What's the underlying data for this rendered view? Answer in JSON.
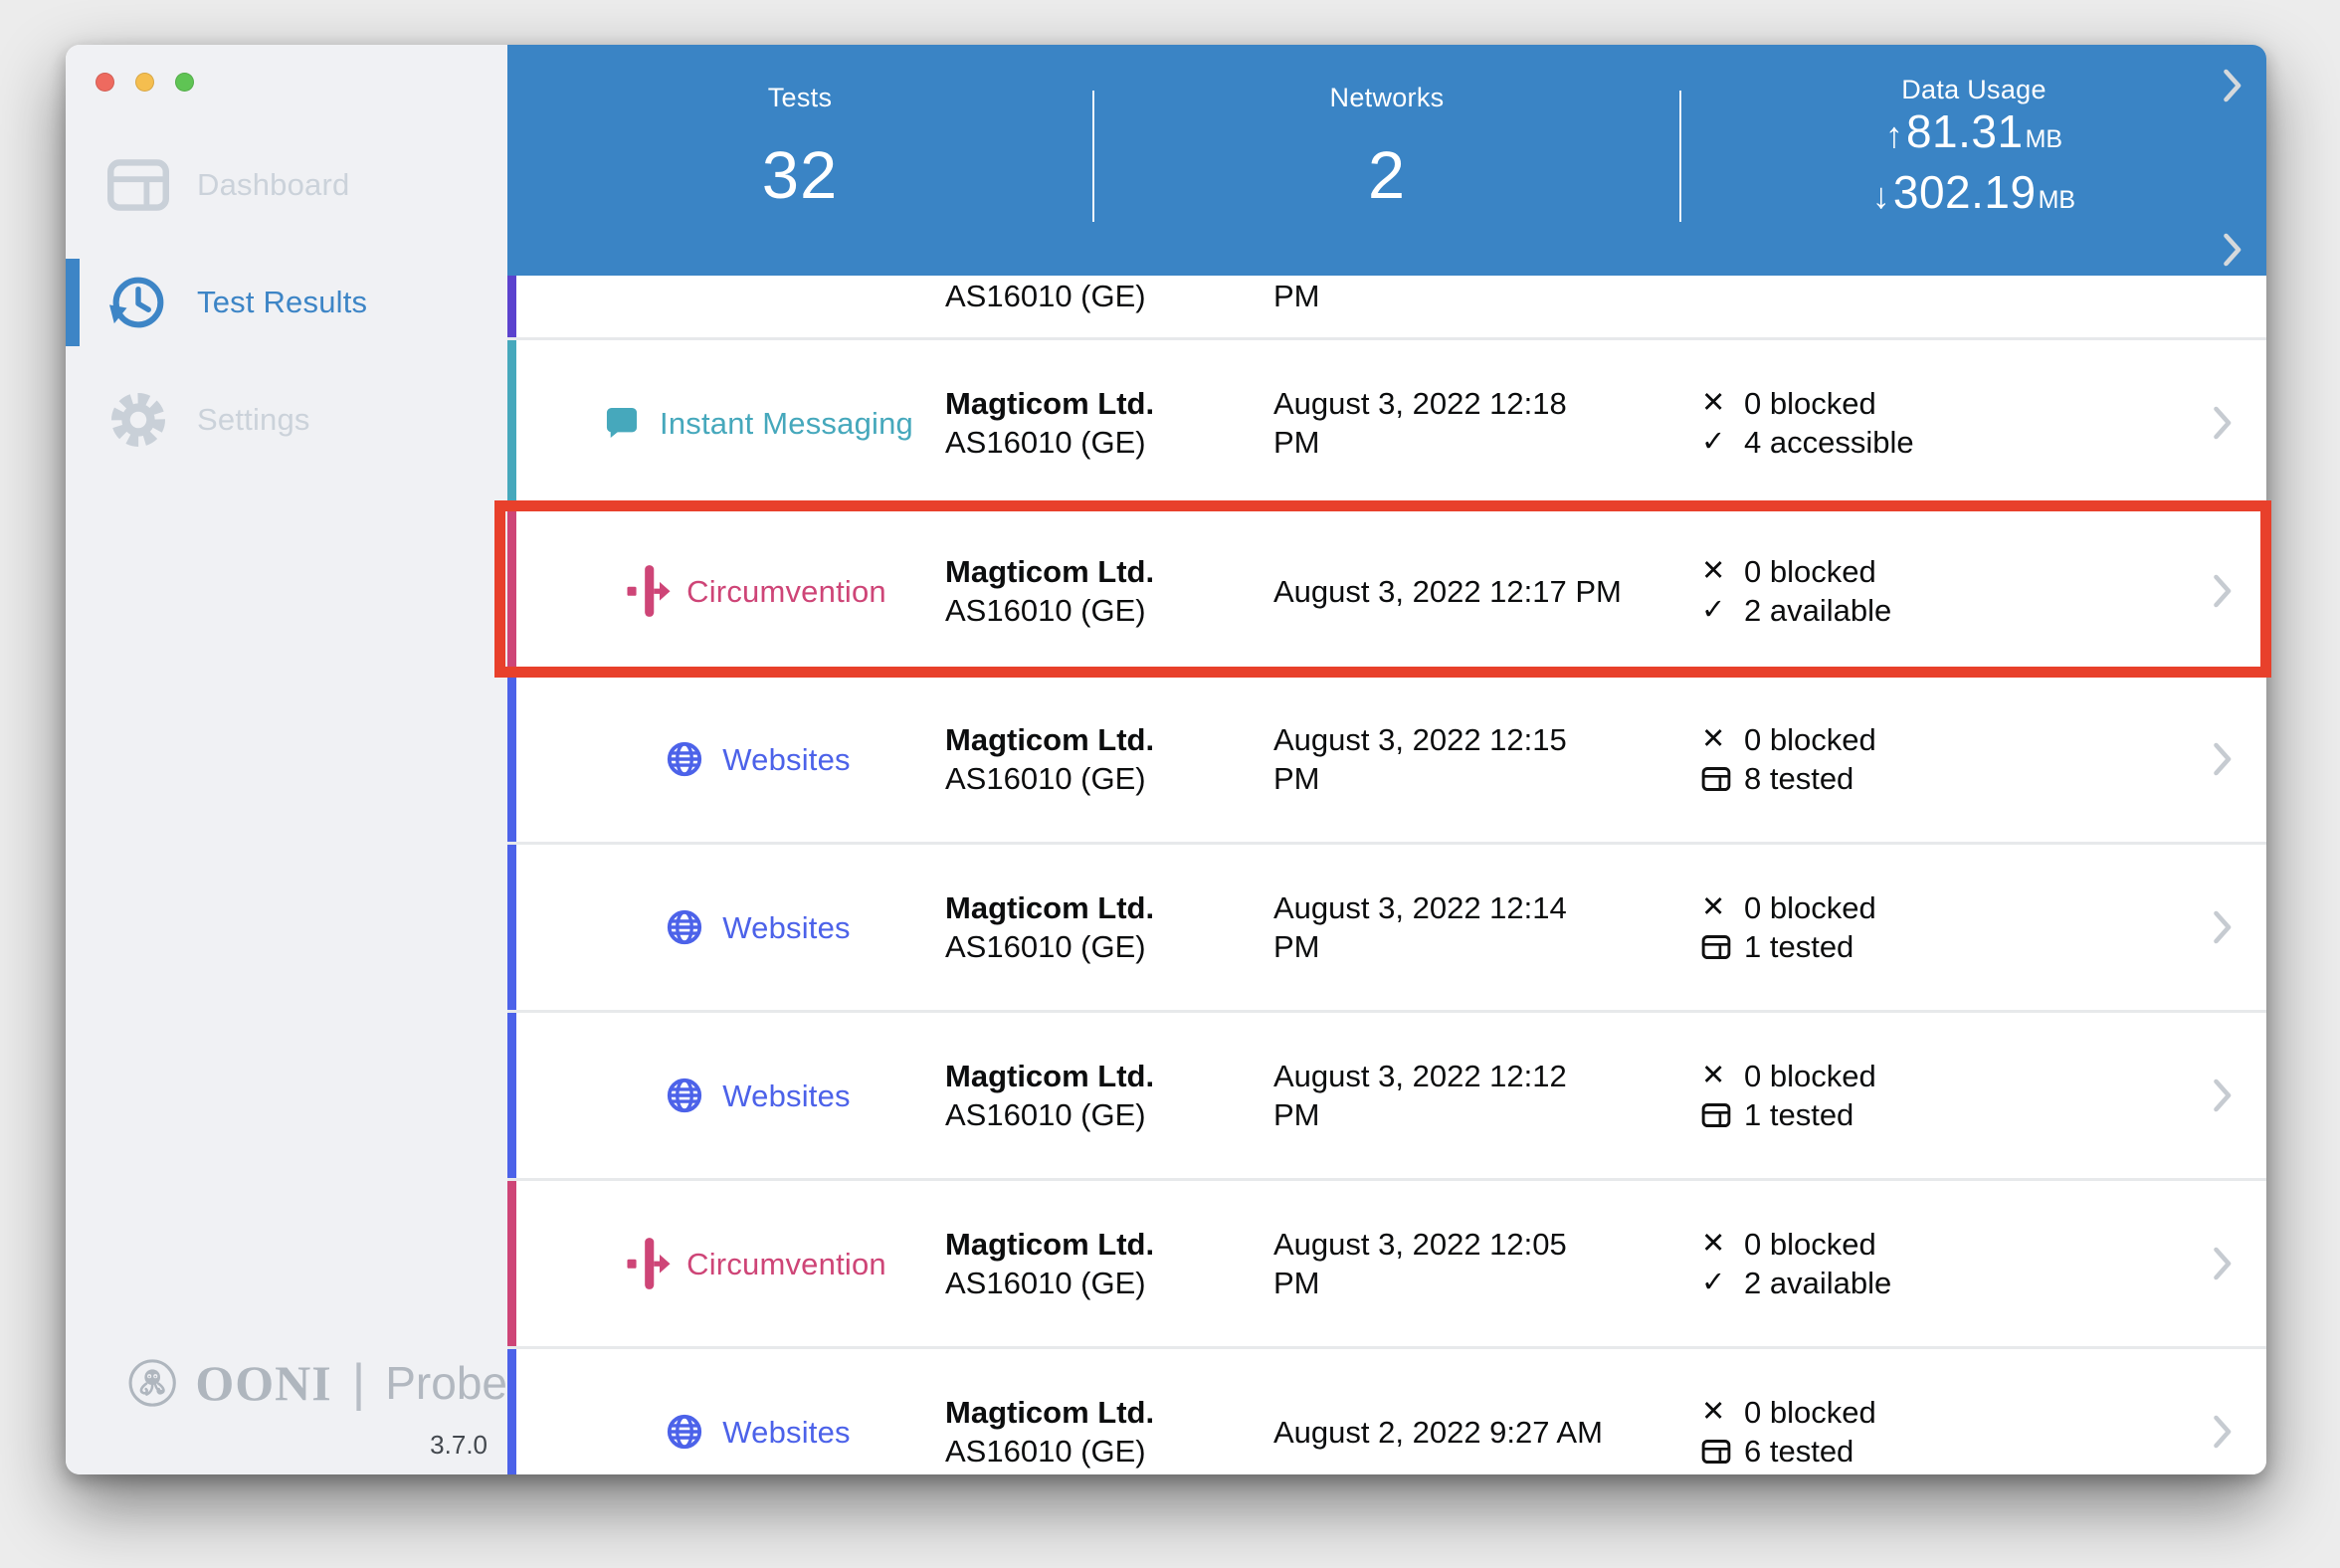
{
  "colors": {
    "header_blue": "#3A84C5",
    "accent_blue": "#3D85C6",
    "annotation_red": "#E8402B",
    "instant_messaging": "#46A8BC",
    "circumvention": "#CE4577",
    "websites": "#4C62E9",
    "partial_row_purple": "#5B42CE",
    "traffic_close": "#EE6A5F",
    "traffic_minimize": "#F5BE4F",
    "traffic_zoom": "#5FC454"
  },
  "sidebar": {
    "items": [
      {
        "label": "Dashboard",
        "icon": "dashboard-icon",
        "active": false
      },
      {
        "label": "Test Results",
        "icon": "history-icon",
        "active": true
      },
      {
        "label": "Settings",
        "icon": "gear-icon",
        "active": false
      }
    ],
    "logo": {
      "brand": "OONI",
      "separator": "|",
      "product": "Probe",
      "version": "3.7.0"
    }
  },
  "header": {
    "stats": [
      {
        "label": "Tests",
        "value": "32"
      },
      {
        "label": "Networks",
        "value": "2"
      }
    ],
    "data_usage": {
      "label": "Data Usage",
      "upload_icon": "↑",
      "upload_value": "81.31",
      "download_icon": "↓",
      "download_value": "302.19",
      "unit": "MB"
    }
  },
  "results": {
    "rows": [
      {
        "partial": true,
        "test_label": "",
        "icon": "",
        "color": "#5B42CE",
        "network": "",
        "asn": "AS16010 (GE)",
        "date_line1": "",
        "date_line2": "PM",
        "status1_icon": "",
        "status1_text": "",
        "status2_icon": "",
        "status2_text": "",
        "highlighted": false
      },
      {
        "partial": false,
        "test_label": "Instant Messaging",
        "icon": "chat-icon",
        "color": "#46A8BC",
        "network": "Magticom Ltd.",
        "asn": "AS16010 (GE)",
        "date_line1": "August 3, 2022 12:18",
        "date_line2": "PM",
        "status1_icon": "✕",
        "status1_text": "0 blocked",
        "status2_icon": "✓",
        "status2_text": "4 accessible",
        "highlighted": false
      },
      {
        "partial": false,
        "test_label": "Circumvention",
        "icon": "circumvention-icon",
        "color": "#CE4577",
        "network": "Magticom Ltd.",
        "asn": "AS16010 (GE)",
        "date_line1": "August 3, 2022 12:17 PM",
        "date_line2": "",
        "status1_icon": "✕",
        "status1_text": "0 blocked",
        "status2_icon": "✓",
        "status2_text": "2 available",
        "highlighted": true
      },
      {
        "partial": false,
        "test_label": "Websites",
        "icon": "globe-icon",
        "color": "#4C62E9",
        "network": "Magticom Ltd.",
        "asn": "AS16010 (GE)",
        "date_line1": "August 3, 2022 12:15",
        "date_line2": "PM",
        "status1_icon": "✕",
        "status1_text": "0 blocked",
        "status2_icon": "card",
        "status2_text": "8 tested",
        "highlighted": false
      },
      {
        "partial": false,
        "test_label": "Websites",
        "icon": "globe-icon",
        "color": "#4C62E9",
        "network": "Magticom Ltd.",
        "asn": "AS16010 (GE)",
        "date_line1": "August 3, 2022 12:14",
        "date_line2": "PM",
        "status1_icon": "✕",
        "status1_text": "0 blocked",
        "status2_icon": "card",
        "status2_text": "1 tested",
        "highlighted": false
      },
      {
        "partial": false,
        "test_label": "Websites",
        "icon": "globe-icon",
        "color": "#4C62E9",
        "network": "Magticom Ltd.",
        "asn": "AS16010 (GE)",
        "date_line1": "August 3, 2022 12:12",
        "date_line2": "PM",
        "status1_icon": "✕",
        "status1_text": "0 blocked",
        "status2_icon": "card",
        "status2_text": "1 tested",
        "highlighted": false
      },
      {
        "partial": false,
        "test_label": "Circumvention",
        "icon": "circumvention-icon",
        "color": "#CE4577",
        "network": "Magticom Ltd.",
        "asn": "AS16010 (GE)",
        "date_line1": "August 3, 2022 12:05",
        "date_line2": "PM",
        "status1_icon": "✕",
        "status1_text": "0 blocked",
        "status2_icon": "✓",
        "status2_text": "2 available",
        "highlighted": false
      },
      {
        "partial": false,
        "test_label": "Websites",
        "icon": "globe-icon",
        "color": "#4C62E9",
        "network": "Magticom Ltd.",
        "asn": "AS16010 (GE)",
        "date_line1": "August 2, 2022 9:27 AM",
        "date_line2": "",
        "status1_icon": "✕",
        "status1_text": "0 blocked",
        "status2_icon": "card",
        "status2_text": "6 tested",
        "highlighted": false
      }
    ]
  },
  "annotation": {
    "type": "highlight-rectangle",
    "target_row_index": 2,
    "color": "#E8402B"
  }
}
